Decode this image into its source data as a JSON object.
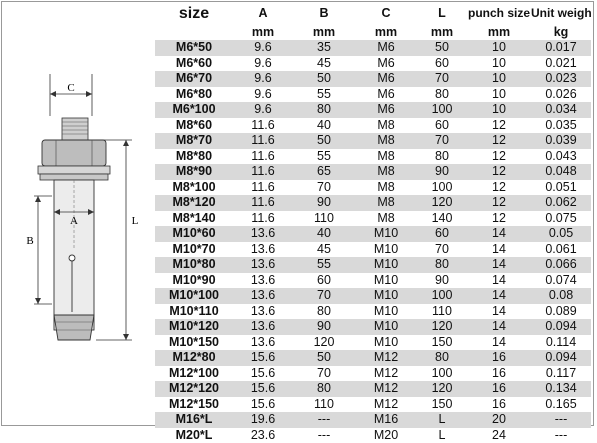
{
  "diagram": {
    "label_c": "C",
    "label_a": "A",
    "label_b": "B",
    "label_l": "L"
  },
  "table": {
    "headers": [
      "size",
      "A",
      "B",
      "C",
      "L",
      "punch size",
      "Unit weight"
    ],
    "units": [
      "",
      "mm",
      "mm",
      "mm",
      "mm",
      "mm",
      "kg"
    ],
    "rows": [
      [
        "M6*50",
        "9.6",
        "35",
        "M6",
        "50",
        "10",
        "0.017"
      ],
      [
        "M6*60",
        "9.6",
        "45",
        "M6",
        "60",
        "10",
        "0.021"
      ],
      [
        "M6*70",
        "9.6",
        "50",
        "M6",
        "70",
        "10",
        "0.023"
      ],
      [
        "M6*80",
        "9.6",
        "55",
        "M6",
        "80",
        "10",
        "0.026"
      ],
      [
        "M6*100",
        "9.6",
        "80",
        "M6",
        "100",
        "10",
        "0.034"
      ],
      [
        "M8*60",
        "11.6",
        "40",
        "M8",
        "60",
        "12",
        "0.035"
      ],
      [
        "M8*70",
        "11.6",
        "50",
        "M8",
        "70",
        "12",
        "0.039"
      ],
      [
        "M8*80",
        "11.6",
        "55",
        "M8",
        "80",
        "12",
        "0.043"
      ],
      [
        "M8*90",
        "11.6",
        "65",
        "M8",
        "90",
        "12",
        "0.048"
      ],
      [
        "M8*100",
        "11.6",
        "70",
        "M8",
        "100",
        "12",
        "0.051"
      ],
      [
        "M8*120",
        "11.6",
        "90",
        "M8",
        "120",
        "12",
        "0.062"
      ],
      [
        "M8*140",
        "11.6",
        "110",
        "M8",
        "140",
        "12",
        "0.075"
      ],
      [
        "M10*60",
        "13.6",
        "40",
        "M10",
        "60",
        "14",
        "0.05"
      ],
      [
        "M10*70",
        "13.6",
        "45",
        "M10",
        "70",
        "14",
        "0.061"
      ],
      [
        "M10*80",
        "13.6",
        "55",
        "M10",
        "80",
        "14",
        "0.066"
      ],
      [
        "M10*90",
        "13.6",
        "60",
        "M10",
        "90",
        "14",
        "0.074"
      ],
      [
        "M10*100",
        "13.6",
        "70",
        "M10",
        "100",
        "14",
        "0.08"
      ],
      [
        "M10*110",
        "13.6",
        "80",
        "M10",
        "110",
        "14",
        "0.089"
      ],
      [
        "M10*120",
        "13.6",
        "90",
        "M10",
        "120",
        "14",
        "0.094"
      ],
      [
        "M10*150",
        "13.6",
        "120",
        "M10",
        "150",
        "14",
        "0.114"
      ],
      [
        "M12*80",
        "15.6",
        "50",
        "M12",
        "80",
        "16",
        "0.094"
      ],
      [
        "M12*100",
        "15.6",
        "70",
        "M12",
        "100",
        "16",
        "0.117"
      ],
      [
        "M12*120",
        "15.6",
        "80",
        "M12",
        "120",
        "16",
        "0.134"
      ],
      [
        "M12*150",
        "15.6",
        "110",
        "M12",
        "150",
        "16",
        "0.165"
      ],
      [
        "M16*L",
        "19.6",
        "---",
        "M16",
        "L",
        "20",
        "---"
      ],
      [
        "M20*L",
        "23.6",
        "---",
        "M20",
        "L",
        "24",
        "---"
      ]
    ]
  }
}
